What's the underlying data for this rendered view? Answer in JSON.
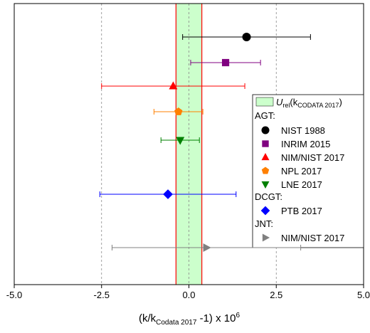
{
  "chart_data": {
    "type": "errorbar",
    "xlim": [
      -5,
      5
    ],
    "xticks": [
      {
        "value": -5,
        "label": "-5.0"
      },
      {
        "value": -2.5,
        "label": "-2.5"
      },
      {
        "value": 0,
        "label": "0.0"
      },
      {
        "value": 2.5,
        "label": "2.5"
      },
      {
        "value": 5,
        "label": "5.0"
      }
    ],
    "grid": true,
    "xlabel": [
      "(k/k",
      "Codata 2017",
      " -1) x 10",
      "6"
    ],
    "band": {
      "lower": -0.37,
      "upper": 0.37,
      "color": "#ccffcc",
      "edge_color": "#ff0000",
      "label": [
        "U",
        "rel",
        "(k",
        "CODATA 2017",
        ")"
      ]
    },
    "groups": [
      {
        "name": "AGT:",
        "series": [
          {
            "name": "NIST 1988",
            "color": "#000000",
            "marker": "circle",
            "x": 1.65,
            "xerr": 1.83
          },
          {
            "name": "INRIM 2015",
            "color": "#800080",
            "marker": "square",
            "x": 1.05,
            "xerr": 1.0
          },
          {
            "name": "NIM/NIST 2017",
            "color": "#ff0000",
            "marker": "triangle-up",
            "x": -0.45,
            "xerr": 2.05
          },
          {
            "name": "NPL 2017",
            "color": "#ff8000",
            "marker": "pentagon",
            "x": -0.3,
            "xerr": 0.7
          },
          {
            "name": "LNE 2017",
            "color": "#008000",
            "marker": "triangle-down",
            "x": -0.25,
            "xerr": 0.55
          }
        ]
      },
      {
        "name": "DCGT:",
        "series": [
          {
            "name": "PTB 2017",
            "color": "#0000ff",
            "marker": "diamond",
            "x": -0.6,
            "xerr": 1.95
          }
        ]
      },
      {
        "name": "JNT:",
        "series": [
          {
            "name": "NIM/NIST 2017",
            "color": "#808080",
            "marker": "triangle-right",
            "x": 0.5,
            "xerr": 2.7
          }
        ]
      }
    ]
  }
}
